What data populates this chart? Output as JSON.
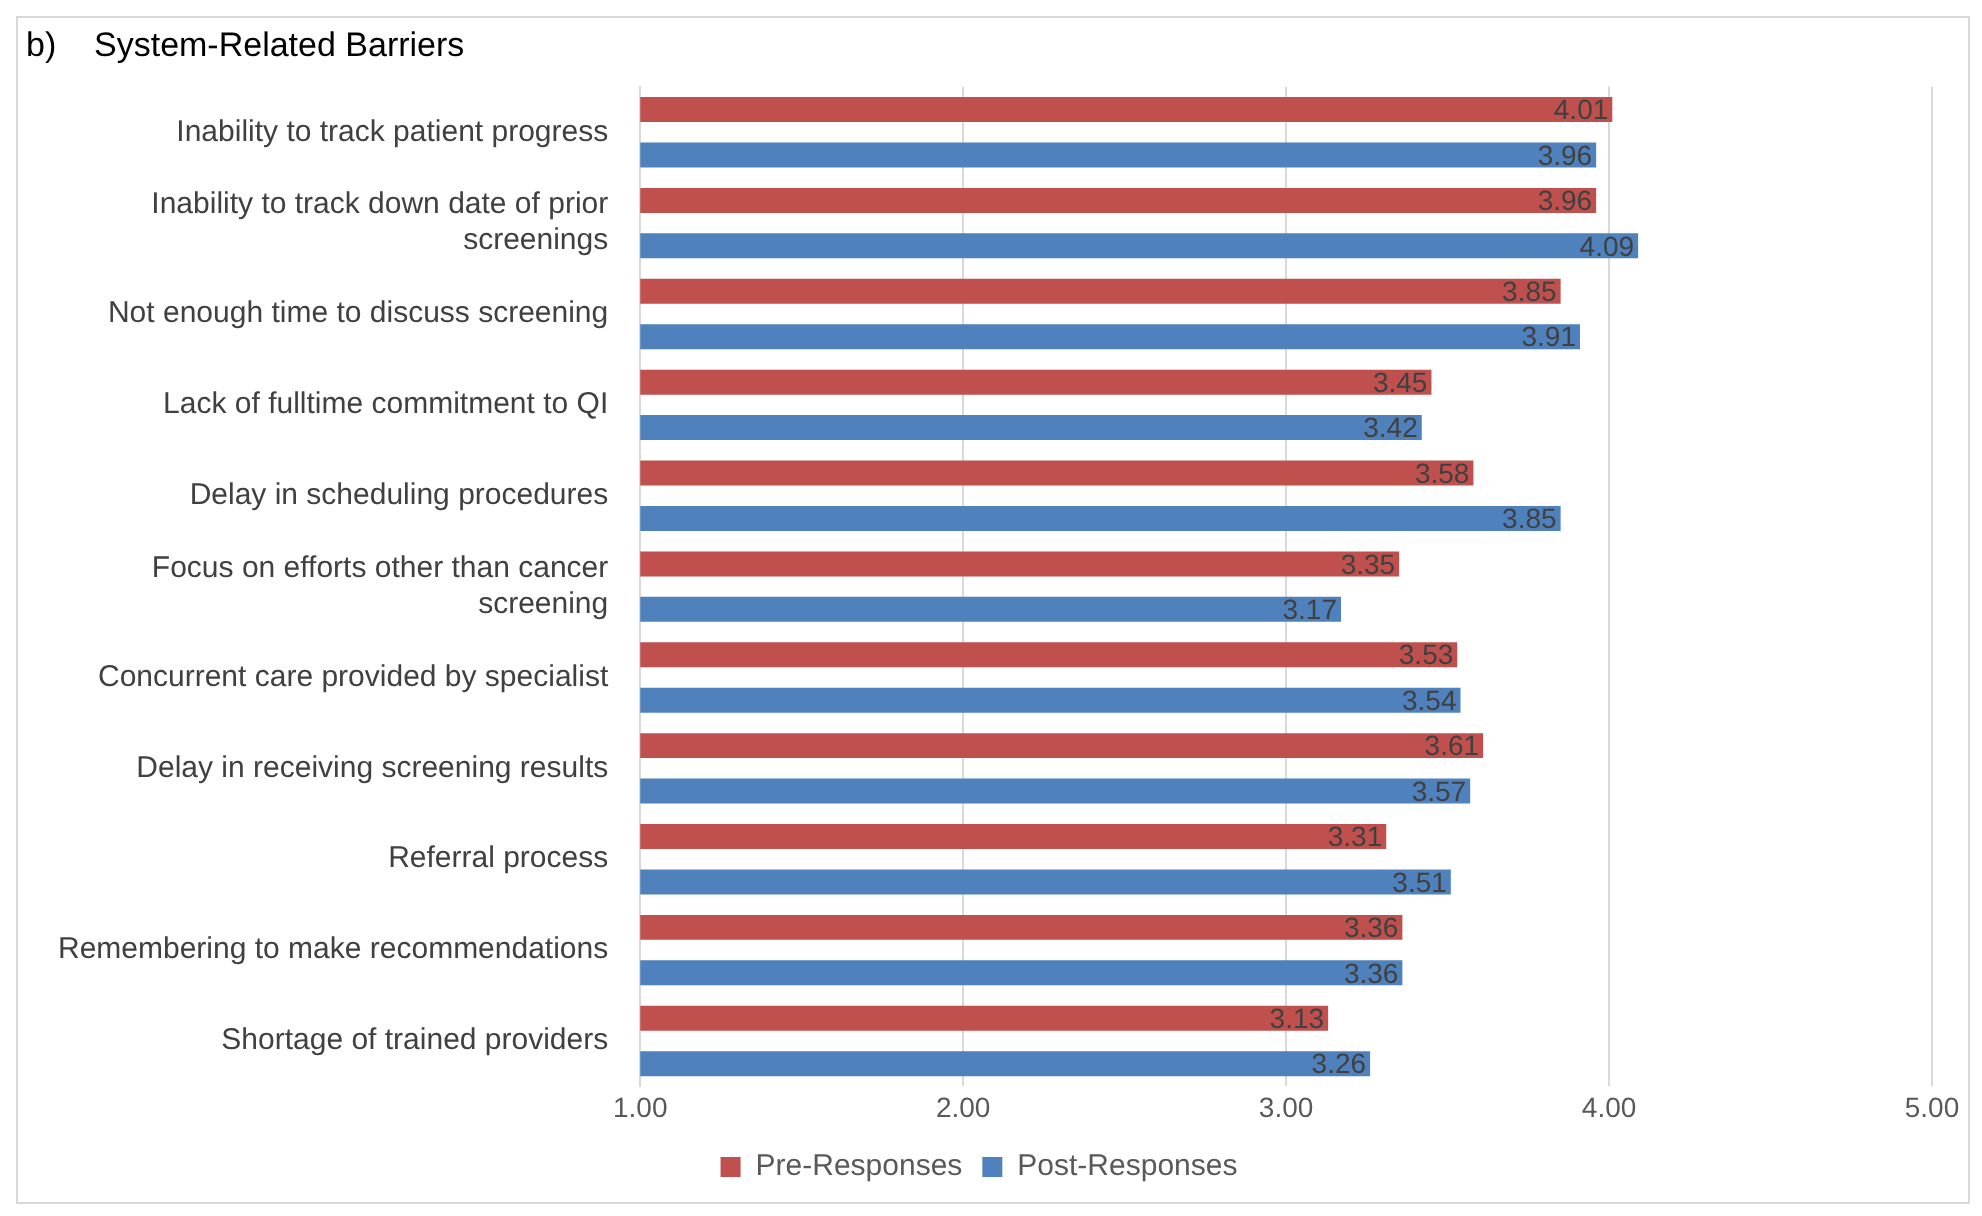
{
  "chart_data": {
    "type": "bar",
    "orientation": "horizontal",
    "title": "b)    System-Related Barriers",
    "categories": [
      "Inability to track patient progress",
      "Inability to track down date of prior screenings",
      "Not enough time to discuss screening",
      "Lack of fulltime commitment to QI",
      "Delay in scheduling procedures",
      "Focus on efforts other than cancer screening",
      "Concurrent care provided by specialist",
      "Delay in receiving screening results",
      "Referral process",
      "Remembering to make recommendations",
      "Shortage of trained providers"
    ],
    "series": [
      {
        "name": "Pre-Responses",
        "color": "#c0504d",
        "values": [
          4.01,
          3.96,
          3.85,
          3.45,
          3.58,
          3.35,
          3.53,
          3.61,
          3.31,
          3.36,
          3.13
        ]
      },
      {
        "name": "Post-Responses",
        "color": "#4f81bd",
        "values": [
          3.96,
          4.09,
          3.91,
          3.42,
          3.85,
          3.17,
          3.54,
          3.57,
          3.51,
          3.36,
          3.26
        ]
      }
    ],
    "xlim": [
      1,
      5
    ],
    "xticks": [
      {
        "value": 1,
        "label": "1.00"
      },
      {
        "value": 2,
        "label": "2.00"
      },
      {
        "value": 3,
        "label": "3.00"
      },
      {
        "value": 4,
        "label": "4.00"
      },
      {
        "value": 5,
        "label": "5.00"
      }
    ],
    "grid": "x",
    "legend": "bottom",
    "data_labels": true
  }
}
